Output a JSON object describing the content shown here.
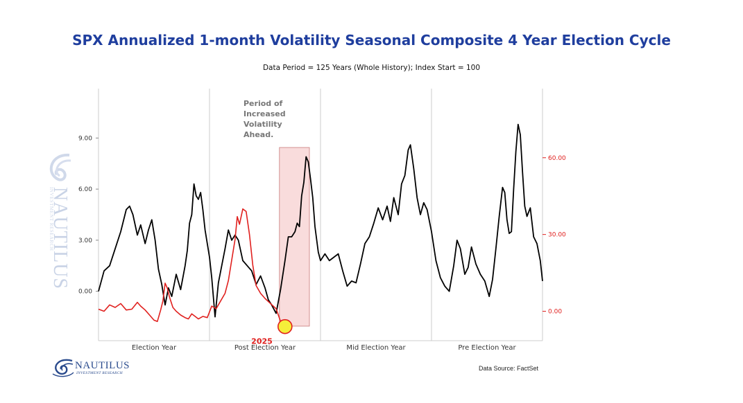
{
  "title": "SPX Annualized 1-month Volatility Seasonal Composite 4 Year Election Cycle",
  "subtitle": "Data Period = 125 Years (Whole History); Index Start = 100",
  "source": "Data Source: FactSet",
  "brand": {
    "name": "NAUTILUS",
    "tagline": "INVESTMENT RESEARCH",
    "color": "#2a4b8d"
  },
  "chart_data": {
    "type": "line",
    "title": "SPX Annualized 1-month Volatility Seasonal Composite 4 Year Election Cycle",
    "categories": [
      "Election Year",
      "Post Election Year",
      "Mid Election Year",
      "Pre Election Year"
    ],
    "x_range": [
      0,
      4
    ],
    "y_left": {
      "ticks": [
        "9.00",
        "6.00",
        "3.00",
        "0.00"
      ],
      "values": [
        9,
        6,
        3,
        0
      ],
      "range": [
        -2.9,
        11.9
      ]
    },
    "y_right": {
      "ticks": [
        "60.00",
        "30.00",
        "0.00"
      ],
      "values": [
        60,
        30,
        0
      ],
      "range": [
        -11.5,
        87
      ]
    },
    "grid": false,
    "series": [
      {
        "axis": "left",
        "color": "#000000",
        "points": [
          [
            0.0,
            0.0
          ],
          [
            0.05,
            1.2
          ],
          [
            0.1,
            1.5
          ],
          [
            0.15,
            2.5
          ],
          [
            0.2,
            3.5
          ],
          [
            0.25,
            4.8
          ],
          [
            0.28,
            5.0
          ],
          [
            0.31,
            4.5
          ],
          [
            0.35,
            3.3
          ],
          [
            0.38,
            3.9
          ],
          [
            0.42,
            2.8
          ],
          [
            0.45,
            3.6
          ],
          [
            0.48,
            4.2
          ],
          [
            0.51,
            3.0
          ],
          [
            0.54,
            1.3
          ],
          [
            0.57,
            0.4
          ],
          [
            0.6,
            -0.8
          ],
          [
            0.63,
            0.2
          ],
          [
            0.66,
            -0.3
          ],
          [
            0.7,
            1.0
          ],
          [
            0.74,
            0.1
          ],
          [
            0.78,
            1.5
          ],
          [
            0.8,
            2.4
          ],
          [
            0.82,
            4.0
          ],
          [
            0.84,
            4.5
          ],
          [
            0.86,
            6.3
          ],
          [
            0.88,
            5.6
          ],
          [
            0.9,
            5.4
          ],
          [
            0.92,
            5.8
          ],
          [
            0.94,
            4.8
          ],
          [
            0.96,
            3.6
          ],
          [
            0.98,
            2.8
          ],
          [
            1.0,
            2.0
          ],
          [
            1.02,
            0.8
          ],
          [
            1.05,
            -1.5
          ],
          [
            1.08,
            0.5
          ],
          [
            1.11,
            1.5
          ],
          [
            1.14,
            2.5
          ],
          [
            1.17,
            3.6
          ],
          [
            1.2,
            3.0
          ],
          [
            1.23,
            3.3
          ],
          [
            1.26,
            3.0
          ],
          [
            1.3,
            1.8
          ],
          [
            1.34,
            1.5
          ],
          [
            1.38,
            1.2
          ],
          [
            1.42,
            0.4
          ],
          [
            1.46,
            0.9
          ],
          [
            1.5,
            0.2
          ],
          [
            1.53,
            -0.5
          ],
          [
            1.56,
            -0.8
          ],
          [
            1.6,
            -1.3
          ],
          [
            1.64,
            0.1
          ],
          [
            1.68,
            1.8
          ],
          [
            1.71,
            3.2
          ],
          [
            1.74,
            3.2
          ],
          [
            1.77,
            3.5
          ],
          [
            1.79,
            4.0
          ],
          [
            1.81,
            3.8
          ],
          [
            1.83,
            5.6
          ],
          [
            1.85,
            6.4
          ],
          [
            1.87,
            7.9
          ],
          [
            1.89,
            7.6
          ],
          [
            1.91,
            6.6
          ],
          [
            1.93,
            5.5
          ],
          [
            1.95,
            3.8
          ],
          [
            1.98,
            2.3
          ],
          [
            2.0,
            1.8
          ],
          [
            2.04,
            2.2
          ],
          [
            2.08,
            1.8
          ],
          [
            2.12,
            2.0
          ],
          [
            2.16,
            2.2
          ],
          [
            2.2,
            1.2
          ],
          [
            2.24,
            0.3
          ],
          [
            2.28,
            0.6
          ],
          [
            2.32,
            0.5
          ],
          [
            2.36,
            1.6
          ],
          [
            2.4,
            2.8
          ],
          [
            2.44,
            3.2
          ],
          [
            2.48,
            4.0
          ],
          [
            2.52,
            4.9
          ],
          [
            2.56,
            4.2
          ],
          [
            2.6,
            5.0
          ],
          [
            2.63,
            4.1
          ],
          [
            2.66,
            5.5
          ],
          [
            2.7,
            4.5
          ],
          [
            2.73,
            6.3
          ],
          [
            2.76,
            6.8
          ],
          [
            2.79,
            8.3
          ],
          [
            2.81,
            8.6
          ],
          [
            2.84,
            7.2
          ],
          [
            2.87,
            5.5
          ],
          [
            2.9,
            4.5
          ],
          [
            2.93,
            5.2
          ],
          [
            2.96,
            4.8
          ],
          [
            3.0,
            3.5
          ],
          [
            3.04,
            1.8
          ],
          [
            3.08,
            0.8
          ],
          [
            3.12,
            0.3
          ],
          [
            3.16,
            0.0
          ],
          [
            3.2,
            1.5
          ],
          [
            3.23,
            3.0
          ],
          [
            3.26,
            2.5
          ],
          [
            3.3,
            1.0
          ],
          [
            3.33,
            1.4
          ],
          [
            3.36,
            2.6
          ],
          [
            3.4,
            1.6
          ],
          [
            3.44,
            1.0
          ],
          [
            3.48,
            0.6
          ],
          [
            3.52,
            -0.3
          ],
          [
            3.55,
            0.7
          ],
          [
            3.58,
            2.5
          ],
          [
            3.61,
            4.4
          ],
          [
            3.64,
            6.1
          ],
          [
            3.66,
            5.8
          ],
          [
            3.68,
            4.2
          ],
          [
            3.7,
            3.4
          ],
          [
            3.72,
            3.5
          ],
          [
            3.74,
            6.0
          ],
          [
            3.76,
            8.2
          ],
          [
            3.78,
            9.8
          ],
          [
            3.8,
            9.2
          ],
          [
            3.82,
            7.0
          ],
          [
            3.84,
            5.0
          ],
          [
            3.86,
            4.4
          ],
          [
            3.89,
            4.9
          ],
          [
            3.92,
            3.2
          ],
          [
            3.95,
            2.8
          ],
          [
            3.98,
            1.8
          ],
          [
            4.0,
            0.6
          ]
        ]
      },
      {
        "name": "2025",
        "axis": "right",
        "color": "#e0201e",
        "points": [
          [
            0.0,
            0.8
          ],
          [
            0.05,
            0.0
          ],
          [
            0.1,
            2.5
          ],
          [
            0.15,
            1.5
          ],
          [
            0.2,
            3.0
          ],
          [
            0.25,
            0.5
          ],
          [
            0.3,
            0.8
          ],
          [
            0.35,
            3.5
          ],
          [
            0.38,
            2.0
          ],
          [
            0.42,
            0.5
          ],
          [
            0.46,
            -1.5
          ],
          [
            0.5,
            -3.5
          ],
          [
            0.53,
            -4.0
          ],
          [
            0.56,
            0.5
          ],
          [
            0.58,
            4.0
          ],
          [
            0.6,
            11.0
          ],
          [
            0.62,
            9.0
          ],
          [
            0.64,
            5.5
          ],
          [
            0.67,
            1.5
          ],
          [
            0.7,
            0.0
          ],
          [
            0.74,
            -1.5
          ],
          [
            0.78,
            -2.5
          ],
          [
            0.81,
            -3.0
          ],
          [
            0.84,
            -1.0
          ],
          [
            0.87,
            -2.0
          ],
          [
            0.9,
            -3.0
          ],
          [
            0.94,
            -2.0
          ],
          [
            0.98,
            -2.5
          ],
          [
            1.02,
            2.0
          ],
          [
            1.06,
            1.0
          ],
          [
            1.1,
            4.0
          ],
          [
            1.14,
            7.0
          ],
          [
            1.17,
            12.0
          ],
          [
            1.2,
            20.0
          ],
          [
            1.23,
            28.0
          ],
          [
            1.25,
            37.0
          ],
          [
            1.27,
            34.0
          ],
          [
            1.3,
            40.0
          ],
          [
            1.33,
            39.0
          ],
          [
            1.36,
            30.0
          ],
          [
            1.39,
            18.0
          ],
          [
            1.42,
            10.0
          ],
          [
            1.46,
            7.0
          ],
          [
            1.5,
            5.0
          ],
          [
            1.55,
            3.0
          ],
          [
            1.6,
            1.0
          ],
          [
            1.64,
            -4.0
          ],
          [
            1.66,
            -5.0
          ],
          [
            1.68,
            -6.0
          ]
        ]
      }
    ],
    "annotations": [
      {
        "type": "text",
        "text": "Period of\nIncreased\nVolatility\nAhead.",
        "color": "#777777"
      },
      {
        "type": "shaded_region",
        "x": [
          1.63,
          1.9
        ],
        "color": "#f9dcdc"
      },
      {
        "type": "marker_label",
        "text": "2025",
        "color": "#e0201e",
        "highlight": "#f5ee3a"
      }
    ]
  }
}
